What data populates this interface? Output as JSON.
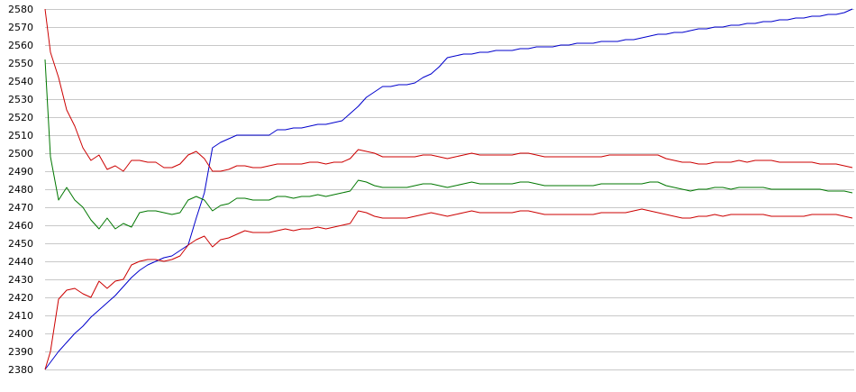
{
  "chart_data": {
    "type": "line",
    "title": "",
    "xlabel": "",
    "ylabel": "",
    "ylim": [
      2380,
      2580
    ],
    "yticks": [
      2380,
      2390,
      2400,
      2410,
      2420,
      2430,
      2440,
      2450,
      2460,
      2470,
      2480,
      2490,
      2500,
      2510,
      2520,
      2530,
      2540,
      2550,
      2560,
      2570,
      2580
    ],
    "grid": "horizontal",
    "legend": "none",
    "x": [
      0,
      2,
      5,
      8,
      11,
      14,
      17,
      20,
      23,
      26,
      29,
      32,
      35,
      38,
      41,
      44,
      47,
      50,
      53,
      56,
      59,
      62,
      65,
      68,
      71,
      74,
      77,
      80,
      83,
      86,
      89,
      92,
      95,
      98,
      101,
      104,
      107,
      110,
      113,
      116,
      119,
      122,
      125,
      128,
      131,
      134,
      137,
      140,
      143,
      146,
      149,
      152,
      155,
      158,
      161,
      164,
      167,
      170,
      173,
      176,
      179,
      182,
      185,
      188,
      191,
      194,
      197,
      200,
      203,
      206,
      209,
      212,
      215,
      218,
      221,
      224,
      227,
      230,
      233,
      236,
      239,
      242,
      245,
      248,
      251,
      254,
      257,
      260,
      263,
      266,
      269,
      272,
      275,
      278,
      281,
      284,
      287,
      290,
      293,
      296,
      299
    ],
    "series": [
      {
        "color": "#0000cc",
        "values": [
          2380,
          2384,
          2390,
          2395,
          2400,
          2404,
          2409,
          2413,
          2417,
          2421,
          2426,
          2431,
          2435,
          2438,
          2440,
          2442,
          2443,
          2446,
          2449,
          2464,
          2478,
          2503,
          2506,
          2508,
          2510,
          2510,
          2510,
          2510,
          2510,
          2513,
          2513,
          2514,
          2514,
          2515,
          2516,
          2516,
          2517,
          2518,
          2522,
          2526,
          2531,
          2534,
          2537,
          2537,
          2538,
          2538,
          2539,
          2542,
          2544,
          2548,
          2553,
          2554,
          2555,
          2555,
          2556,
          2556,
          2557,
          2557,
          2557,
          2558,
          2558,
          2559,
          2559,
          2559,
          2560,
          2560,
          2561,
          2561,
          2561,
          2562,
          2562,
          2562,
          2563,
          2563,
          2564,
          2565,
          2566,
          2566,
          2567,
          2567,
          2568,
          2569,
          2569,
          2570,
          2570,
          2571,
          2571,
          2572,
          2572,
          2573,
          2573,
          2574,
          2574,
          2575,
          2575,
          2576,
          2576,
          2577,
          2577,
          2578,
          2580
        ]
      },
      {
        "color": "#cc0000",
        "values": [
          2580,
          2556,
          2542,
          2524,
          2515,
          2503,
          2496,
          2499,
          2491,
          2493,
          2490,
          2496,
          2496,
          2495,
          2495,
          2492,
          2492,
          2494,
          2499,
          2501,
          2497,
          2490,
          2490,
          2491,
          2493,
          2493,
          2492,
          2492,
          2493,
          2494,
          2494,
          2494,
          2494,
          2495,
          2495,
          2494,
          2495,
          2495,
          2497,
          2502,
          2501,
          2500,
          2498,
          2498,
          2498,
          2498,
          2498,
          2499,
          2499,
          2498,
          2497,
          2498,
          2499,
          2500,
          2499,
          2499,
          2499,
          2499,
          2499,
          2500,
          2500,
          2499,
          2498,
          2498,
          2498,
          2498,
          2498,
          2498,
          2498,
          2498,
          2499,
          2499,
          2499,
          2499,
          2499,
          2499,
          2499,
          2497,
          2496,
          2495,
          2495,
          2494,
          2494,
          2495,
          2495,
          2495,
          2496,
          2495,
          2496,
          2496,
          2496,
          2495,
          2495,
          2495,
          2495,
          2495,
          2494,
          2494,
          2494,
          2493,
          2492
        ]
      },
      {
        "color": "#007700",
        "values": [
          2552,
          2498,
          2474,
          2481,
          2474,
          2470,
          2463,
          2458,
          2464,
          2458,
          2461,
          2459,
          2467,
          2468,
          2468,
          2467,
          2466,
          2467,
          2474,
          2476,
          2474,
          2468,
          2471,
          2472,
          2475,
          2475,
          2474,
          2474,
          2474,
          2476,
          2476,
          2475,
          2476,
          2476,
          2477,
          2476,
          2477,
          2478,
          2479,
          2485,
          2484,
          2482,
          2481,
          2481,
          2481,
          2481,
          2482,
          2483,
          2483,
          2482,
          2481,
          2482,
          2483,
          2484,
          2483,
          2483,
          2483,
          2483,
          2483,
          2484,
          2484,
          2483,
          2482,
          2482,
          2482,
          2482,
          2482,
          2482,
          2482,
          2483,
          2483,
          2483,
          2483,
          2483,
          2483,
          2484,
          2484,
          2482,
          2481,
          2480,
          2479,
          2480,
          2480,
          2481,
          2481,
          2480,
          2481,
          2481,
          2481,
          2481,
          2480,
          2480,
          2480,
          2480,
          2480,
          2480,
          2480,
          2479,
          2479,
          2479,
          2478
        ]
      },
      {
        "color": "#cc0000",
        "values": [
          2380,
          2390,
          2419,
          2424,
          2425,
          2422,
          2420,
          2429,
          2425,
          2429,
          2430,
          2438,
          2440,
          2441,
          2441,
          2440,
          2441,
          2443,
          2449,
          2452,
          2454,
          2448,
          2452,
          2453,
          2455,
          2457,
          2456,
          2456,
          2456,
          2457,
          2458,
          2457,
          2458,
          2458,
          2459,
          2458,
          2459,
          2460,
          2461,
          2468,
          2467,
          2465,
          2464,
          2464,
          2464,
          2464,
          2465,
          2466,
          2467,
          2466,
          2465,
          2466,
          2467,
          2468,
          2467,
          2467,
          2467,
          2467,
          2467,
          2468,
          2468,
          2467,
          2466,
          2466,
          2466,
          2466,
          2466,
          2466,
          2466,
          2467,
          2467,
          2467,
          2467,
          2468,
          2469,
          2468,
          2467,
          2466,
          2465,
          2464,
          2464,
          2465,
          2465,
          2466,
          2465,
          2466,
          2466,
          2466,
          2466,
          2466,
          2465,
          2465,
          2465,
          2465,
          2465,
          2466,
          2466,
          2466,
          2466,
          2465,
          2464
        ]
      }
    ]
  }
}
